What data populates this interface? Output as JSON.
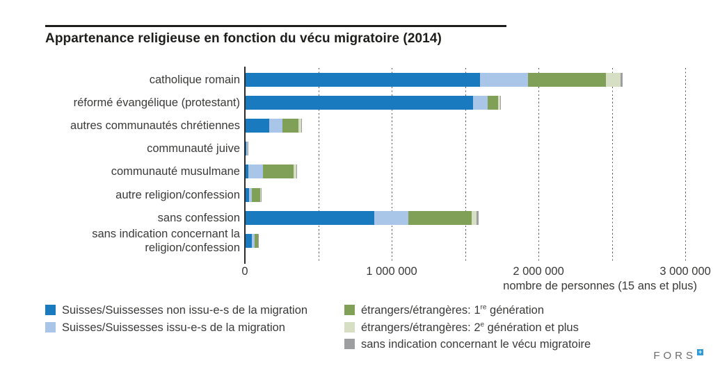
{
  "header": {
    "title": "Appartenance religieuse en fonction du vécu migratoire (2014)"
  },
  "footer": {
    "logo_text": "FORS"
  },
  "chart_data": {
    "type": "bar",
    "orientation": "horizontal",
    "stacked": true,
    "title": "Appartenance religieuse en fonction du vécu migratoire (2014)",
    "xlabel": "nombre de personnes (15 ans et plus)",
    "xlim": [
      0,
      3080000
    ],
    "gridline_step": 500000,
    "grid": "dashed-vertical",
    "legend_position": "bottom",
    "x_ticks": [
      {
        "value": 0,
        "label": "0"
      },
      {
        "value": 1000000,
        "label": "1 000 000"
      },
      {
        "value": 2000000,
        "label": "2 000 000"
      },
      {
        "value": 3000000,
        "label": "3 000 000"
      }
    ],
    "categories": [
      "catholique romain",
      "réformé évangélique (protestant)",
      "autres communautés chrétiennes",
      "communauté juive",
      "communauté musulmane",
      "autre religion/confession",
      "sans confession",
      "sans indication concernant la religion/confession"
    ],
    "series": [
      {
        "key": "swiss-non-migrant",
        "name": "Suisses/Suissesses non issu-e-s de la migration",
        "color": "#1a7abf",
        "values": [
          1600000,
          1555000,
          165000,
          10000,
          25000,
          28000,
          880000,
          48000
        ]
      },
      {
        "key": "swiss-migrant",
        "name": "Suisses/Suissesses issu-e-s de la migration",
        "color": "#a9c6e8",
        "values": [
          330000,
          100000,
          90000,
          8000,
          100000,
          20000,
          235000,
          16000
        ]
      },
      {
        "key": "foreign-1st-gen",
        "name": "étrangers/étrangères: 1re génération",
        "color": "#7fa056",
        "values": [
          530000,
          70000,
          110000,
          2000,
          205000,
          55000,
          430000,
          25000
        ]
      },
      {
        "key": "foreign-2nd-gen",
        "name": "étrangers/étrangères: 2e génération et plus",
        "color": "#d6dfc3",
        "values": [
          100000,
          12000,
          20000,
          1000,
          22000,
          8000,
          33000,
          3000
        ]
      },
      {
        "key": "no-indication-migration",
        "name": "sans indication concernant le vécu migratoire",
        "color": "#9c9ea0",
        "values": [
          15000,
          8000,
          3000,
          2000,
          3000,
          2000,
          16000,
          3000
        ]
      }
    ],
    "legend_items": [
      {
        "series": 0,
        "column": 1,
        "pre": "Suisses/Suissesses non issu-e-s de la migration",
        "sup": "",
        "post": ""
      },
      {
        "series": 1,
        "column": 1,
        "pre": "Suisses/Suissesses issu-e-s de la migration",
        "sup": "",
        "post": ""
      },
      {
        "series": 2,
        "column": 2,
        "pre": "étrangers/étrangères: 1",
        "sup": "re",
        "post": " génération"
      },
      {
        "series": 3,
        "column": 2,
        "pre": "étrangers/étrangères: 2",
        "sup": "e",
        "post": " génération et plus"
      },
      {
        "series": 4,
        "column": 2,
        "pre": "sans indication concernant le vécu migratoire",
        "sup": "",
        "post": ""
      }
    ]
  }
}
